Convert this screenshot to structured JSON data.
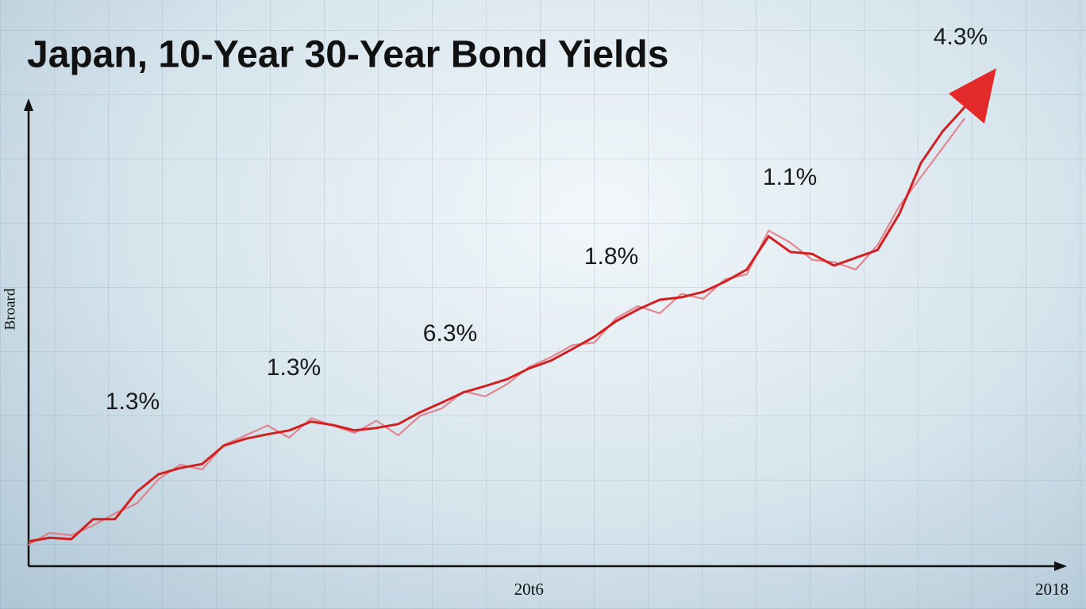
{
  "chart_data": {
    "type": "line",
    "title": "Japan, 10-Year 30-Year Bond Yields",
    "y_label": "Broard",
    "annotations": [
      "4.3%",
      "1.1%",
      "1.8%",
      "6.3%",
      "1.3%",
      "1.3%"
    ],
    "categories": [
      null,
      null,
      null,
      null,
      null,
      null,
      null,
      null,
      null,
      null,
      null,
      null,
      null,
      null,
      null,
      null,
      null,
      null,
      null,
      null,
      null,
      null,
      null,
      "20t6",
      null,
      null,
      null,
      null,
      null,
      null,
      null,
      null,
      null,
      null,
      null,
      null,
      null,
      null,
      null,
      null,
      null,
      null,
      null,
      null,
      null,
      null,
      null,
      "2018"
    ],
    "ylim": [
      0,
      100
    ],
    "series": [
      {
        "color": "#d21f1f",
        "values": [
          5.2,
          6,
          5.7,
          9.8,
          9.8,
          15.4,
          19,
          20.3,
          21.1,
          24.9,
          26.3,
          27.2,
          28,
          29.8,
          29.1,
          28,
          28.5,
          29.3,
          31.7,
          33.7,
          35.8,
          37.1,
          38.5,
          40.7,
          42.3,
          44.7,
          47.2,
          50.4,
          52.8,
          54.8,
          55.3,
          56.4,
          58.5,
          61,
          67.8,
          64.6,
          64.2,
          61.8,
          63.4,
          65,
          72.4,
          82.9,
          89.4,
          94.3,
          null,
          null,
          null,
          null
        ]
      },
      {
        "color": "#e2737c",
        "values": [
          4.5,
          7,
          6.5,
          8.5,
          11,
          13,
          18,
          21,
          20,
          25,
          27,
          29,
          26.5,
          30.5,
          29,
          27.5,
          30,
          27,
          31,
          32.5,
          36,
          35,
          37.5,
          41,
          43,
          45.5,
          46,
          51,
          53.5,
          52,
          56,
          55,
          59,
          60,
          69,
          66.5,
          63,
          62.5,
          61,
          66,
          74,
          80,
          86,
          92,
          null,
          null,
          null,
          null
        ]
      }
    ]
  }
}
